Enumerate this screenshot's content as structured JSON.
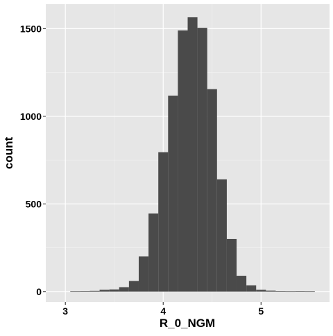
{
  "chart_data": {
    "type": "bar",
    "chart_kind": "histogram",
    "xlabel": "R_0_NGM",
    "ylabel": "count",
    "xlim": [
      2.8,
      5.7
    ],
    "ylim": [
      -60,
      1640
    ],
    "x_ticks": [
      3,
      4,
      5
    ],
    "y_ticks": [
      0,
      500,
      1000,
      1500
    ],
    "x_tick_labels": [
      "3",
      "4",
      "5"
    ],
    "y_tick_labels": [
      "0",
      "500",
      "1000",
      "1500"
    ],
    "grid": true,
    "bin_width": 0.1,
    "bin_centers": [
      3.0,
      3.1,
      3.2,
      3.3,
      3.4,
      3.5,
      3.6,
      3.7,
      3.8,
      3.9,
      4.0,
      4.1,
      4.2,
      4.3,
      4.4,
      4.5,
      4.6,
      4.7,
      4.8,
      4.9,
      5.0,
      5.1,
      5.2,
      5.3,
      5.4,
      5.5
    ],
    "values": [
      0,
      2,
      3,
      4,
      10,
      12,
      25,
      60,
      200,
      445,
      795,
      1118,
      1490,
      1565,
      1505,
      1155,
      640,
      300,
      90,
      35,
      10,
      5,
      3,
      2,
      3,
      2
    ],
    "colors": {
      "bar": "#4a4a4a",
      "panel": "#e6e6e6",
      "grid_major": "#ffffff",
      "grid_minor": "#f2f2f2",
      "tick": "#333333",
      "text": "#000000"
    }
  }
}
